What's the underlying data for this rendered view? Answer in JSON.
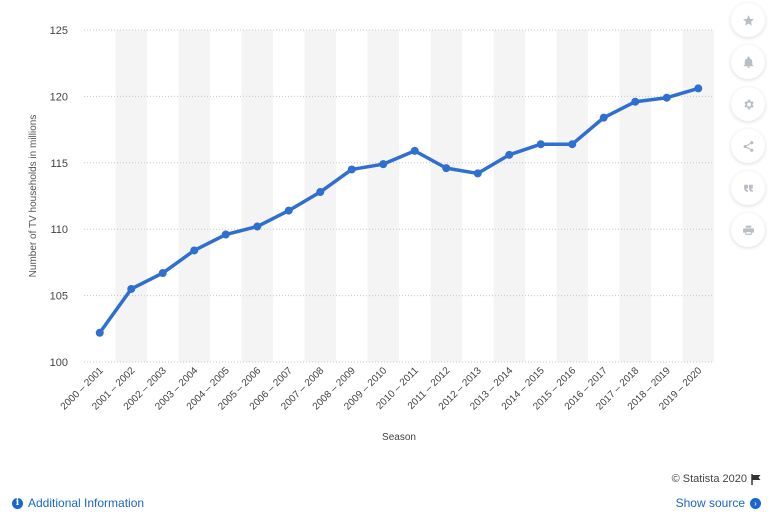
{
  "chart_data": {
    "type": "line",
    "xlabel": "Season",
    "ylabel": "Number of TV households in millions",
    "ylim": [
      100,
      125
    ],
    "yticks": [
      100,
      105,
      110,
      115,
      120,
      125
    ],
    "grid": true,
    "categories": [
      "2000 - 2001",
      "2001 - 2002",
      "2002 - 2003",
      "2003 - 2004",
      "2004 - 2005",
      "2005 - 2006",
      "2006 - 2007",
      "2007 - 2008",
      "2008 - 2009",
      "2009 - 2010",
      "2010 - 2011",
      "2011 - 2012",
      "2012 - 2013",
      "2013 - 2014",
      "2014 - 2015",
      "2015 - 2016",
      "2016 - 2017",
      "2017 - 2018",
      "2018 - 2019",
      "2019 - 2020"
    ],
    "tick_labels": [
      "2000 – 2001",
      "2001 – 2002",
      "2002 – 2003",
      "2003 – 2004",
      "2004 – 2005",
      "2005 – 2006",
      "2006 – 2007",
      "2007 – 2008",
      "2008 – 2009",
      "2009 – 2010",
      "2010 – 2011",
      "2011 – 2012",
      "2012 – 2013",
      "2013 – 2014",
      "2014 – 2015",
      "2015 – 2016",
      "2016 – 2017",
      "2017 – 2018",
      "2018 – 2019",
      "2019 – 2020"
    ],
    "series": [
      {
        "values": [
          102.2,
          105.5,
          106.7,
          108.4,
          109.6,
          110.2,
          111.4,
          112.8,
          114.5,
          114.9,
          115.9,
          114.6,
          114.2,
          115.6,
          116.4,
          116.4,
          118.4,
          119.6,
          119.9,
          120.6
        ]
      }
    ],
    "colors": {
      "line": "#2f6fd0",
      "band": "#f4f4f4",
      "grid": "#c8c8c8"
    }
  },
  "footer": {
    "credit": "© Statista 2020",
    "additional_info": "Additional Information",
    "show_source": "Show source"
  },
  "toolbar_icons": [
    "star-icon",
    "bell-icon",
    "gear-icon",
    "share-icon",
    "quote-icon",
    "print-icon"
  ]
}
